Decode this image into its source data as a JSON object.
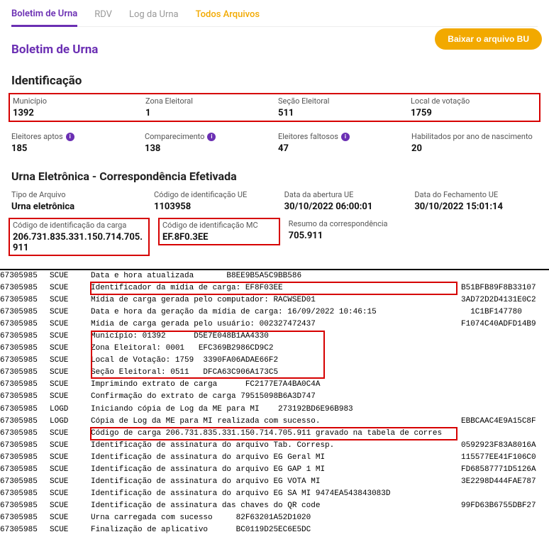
{
  "tabs": {
    "bu": "Boletim de Urna",
    "rdv": "RDV",
    "log": "Log da Urna",
    "todos": "Todos Arquivos"
  },
  "download_label": "Baixar o arquivo BU",
  "page_title": "Boletim de Urna",
  "ident": {
    "title": "Identificação",
    "municipio_label": "Município",
    "municipio": "1392",
    "zona_label": "Zona Eleitoral",
    "zona": "1",
    "secao_label": "Seção Eleitoral",
    "secao": "511",
    "local_label": "Local de votação",
    "local": "1759",
    "aptos_label": "Eleitores aptos",
    "aptos": "185",
    "compar_label": "Comparecimento",
    "compar": "138",
    "falt_label": "Eleitores faltosos",
    "falt": "47",
    "hab_label": "Habilitados por ano de nascimento",
    "hab": "20"
  },
  "urna": {
    "title": "Urna Eletrônica - Correspondência Efetivada",
    "tipo_label": "Tipo de Arquivo",
    "tipo": "Urna eletrônica",
    "cod_ue_label": "Código de identificação UE",
    "cod_ue": "1103958",
    "abertura_label": "Data da abertura UE",
    "abertura": "30/10/2022 06:00:01",
    "fechamento_label": "Data do Fechamento UE",
    "fechamento": "30/10/2022 15:01:14",
    "cod_carga_label": "Código de identificação da carga",
    "cod_carga": "206.731.835.331.150.714.705.911",
    "cod_mc_label": "Código de identificação MC",
    "cod_mc": "EF.8F0.3EE",
    "resumo_label": "Resumo da correspondência",
    "resumo": "705.911"
  },
  "log": {
    "rows": [
      {
        "c1": "67305985",
        "c2": "SCUE",
        "c3": "Data e hora atualizada       B8EE9B5A5C9BB586",
        "c4": "",
        "hl": false
      },
      {
        "c1": "67305985",
        "c2": "SCUE",
        "c3": "Identificador da mídia de carga: EF8F03EE",
        "c4": "B51BFB89F8B33107",
        "hl": true
      },
      {
        "c1": "67305985",
        "c2": "SCUE",
        "c3": "Mídia de carga gerada pelo computador: RACWSED01",
        "c4": "3AD72D2D4131E0C2",
        "hl": false
      },
      {
        "c1": "67305985",
        "c2": "SCUE",
        "c3": "Data e hora da geração da mídia de carga: 16/09/2022 10:46:15",
        "c4": "  1C1BF147780",
        "hl": false
      },
      {
        "c1": "67305985",
        "c2": "SCUE",
        "c3": "Mídia de carga gerada pelo usuário: 002327472437",
        "c4": "F1074C40ADFD14B9",
        "hl": false
      },
      {
        "c1": "67305985",
        "c2": "SCUE",
        "c3": "Município: 01392      D5E7E048B1AA4330",
        "c4": "",
        "hl": "group-start"
      },
      {
        "c1": "67305985",
        "c2": "SCUE",
        "c3": "Zona Eleitoral: 0001   EFC369B2986CD9C2",
        "c4": "",
        "hl": "group"
      },
      {
        "c1": "67305985",
        "c2": "SCUE",
        "c3": "Local de Votação: 1759  3390FA06ADAE66F2",
        "c4": "",
        "hl": "group"
      },
      {
        "c1": "67305985",
        "c2": "SCUE",
        "c3": "Seção Eleitoral: 0511   DFCA63C906A173C5",
        "c4": "",
        "hl": "group-end"
      },
      {
        "c1": "67305985",
        "c2": "SCUE",
        "c3": "Imprimindo extrato de carga      FC2177E7A4BA0C4A",
        "c4": "",
        "hl": false
      },
      {
        "c1": "67305985",
        "c2": "SCUE",
        "c3": "Confirmação do extrato de carga 79515098B6A3D747",
        "c4": "",
        "hl": false
      },
      {
        "c1": "67305985",
        "c2": "LOGD",
        "c3": "Iniciando cópia de Log da ME para MI    273192BD6E96B983",
        "c4": "",
        "hl": false
      },
      {
        "c1": "67305985",
        "c2": "LOGD",
        "c3": "Cópia de Log da ME para MI realizada com sucesso.",
        "c4": "EBBCAAC4E9A15C8F",
        "hl": false
      },
      {
        "c1": "67305985",
        "c2": "SCUE",
        "c3": "Código de carga 206.731.835.331.150.714.705.911 gravado na tabela de corres",
        "c4": "",
        "hl": true
      },
      {
        "c1": "67305985",
        "c2": "SCUE",
        "c3": "Identificação de assinatura do arquivo Tab. Corresp.",
        "c4": "0592923F83A8016A",
        "hl": false
      },
      {
        "c1": "67305985",
        "c2": "SCUE",
        "c3": "Identificação de assinatura do arquivo EG Geral MI",
        "c4": "115577EE41F106C0",
        "hl": false
      },
      {
        "c1": "67305985",
        "c2": "SCUE",
        "c3": "Identificação de assinatura do arquivo EG GAP 1 MI",
        "c4": "FD68587771D5126A",
        "hl": false
      },
      {
        "c1": "67305985",
        "c2": "SCUE",
        "c3": "Identificação de assinatura do arquivo EG VOTA MI",
        "c4": "3E2298D444FAE787",
        "hl": false
      },
      {
        "c1": "67305985",
        "c2": "SCUE",
        "c3": "Identificação de assinatura do arquivo EG SA MI 9474EA543843083D",
        "c4": "",
        "hl": false
      },
      {
        "c1": "67305985",
        "c2": "SCUE",
        "c3": "Identificação de assinatura das chaves do QR code",
        "c4": "99FD63B6755DBF27",
        "hl": false
      },
      {
        "c1": "67305985",
        "c2": "SCUE",
        "c3": "Urna carregada com sucesso     82F63201A52D1020",
        "c4": "",
        "hl": false
      },
      {
        "c1": "67305985",
        "c2": "SCUE",
        "c3": "Finalização de aplicativo      BC0119D25EC6E5DC",
        "c4": "",
        "hl": false
      }
    ]
  },
  "colors": {
    "purple": "#6b2fb3",
    "yellow": "#f2a900",
    "red": "#d60000"
  }
}
